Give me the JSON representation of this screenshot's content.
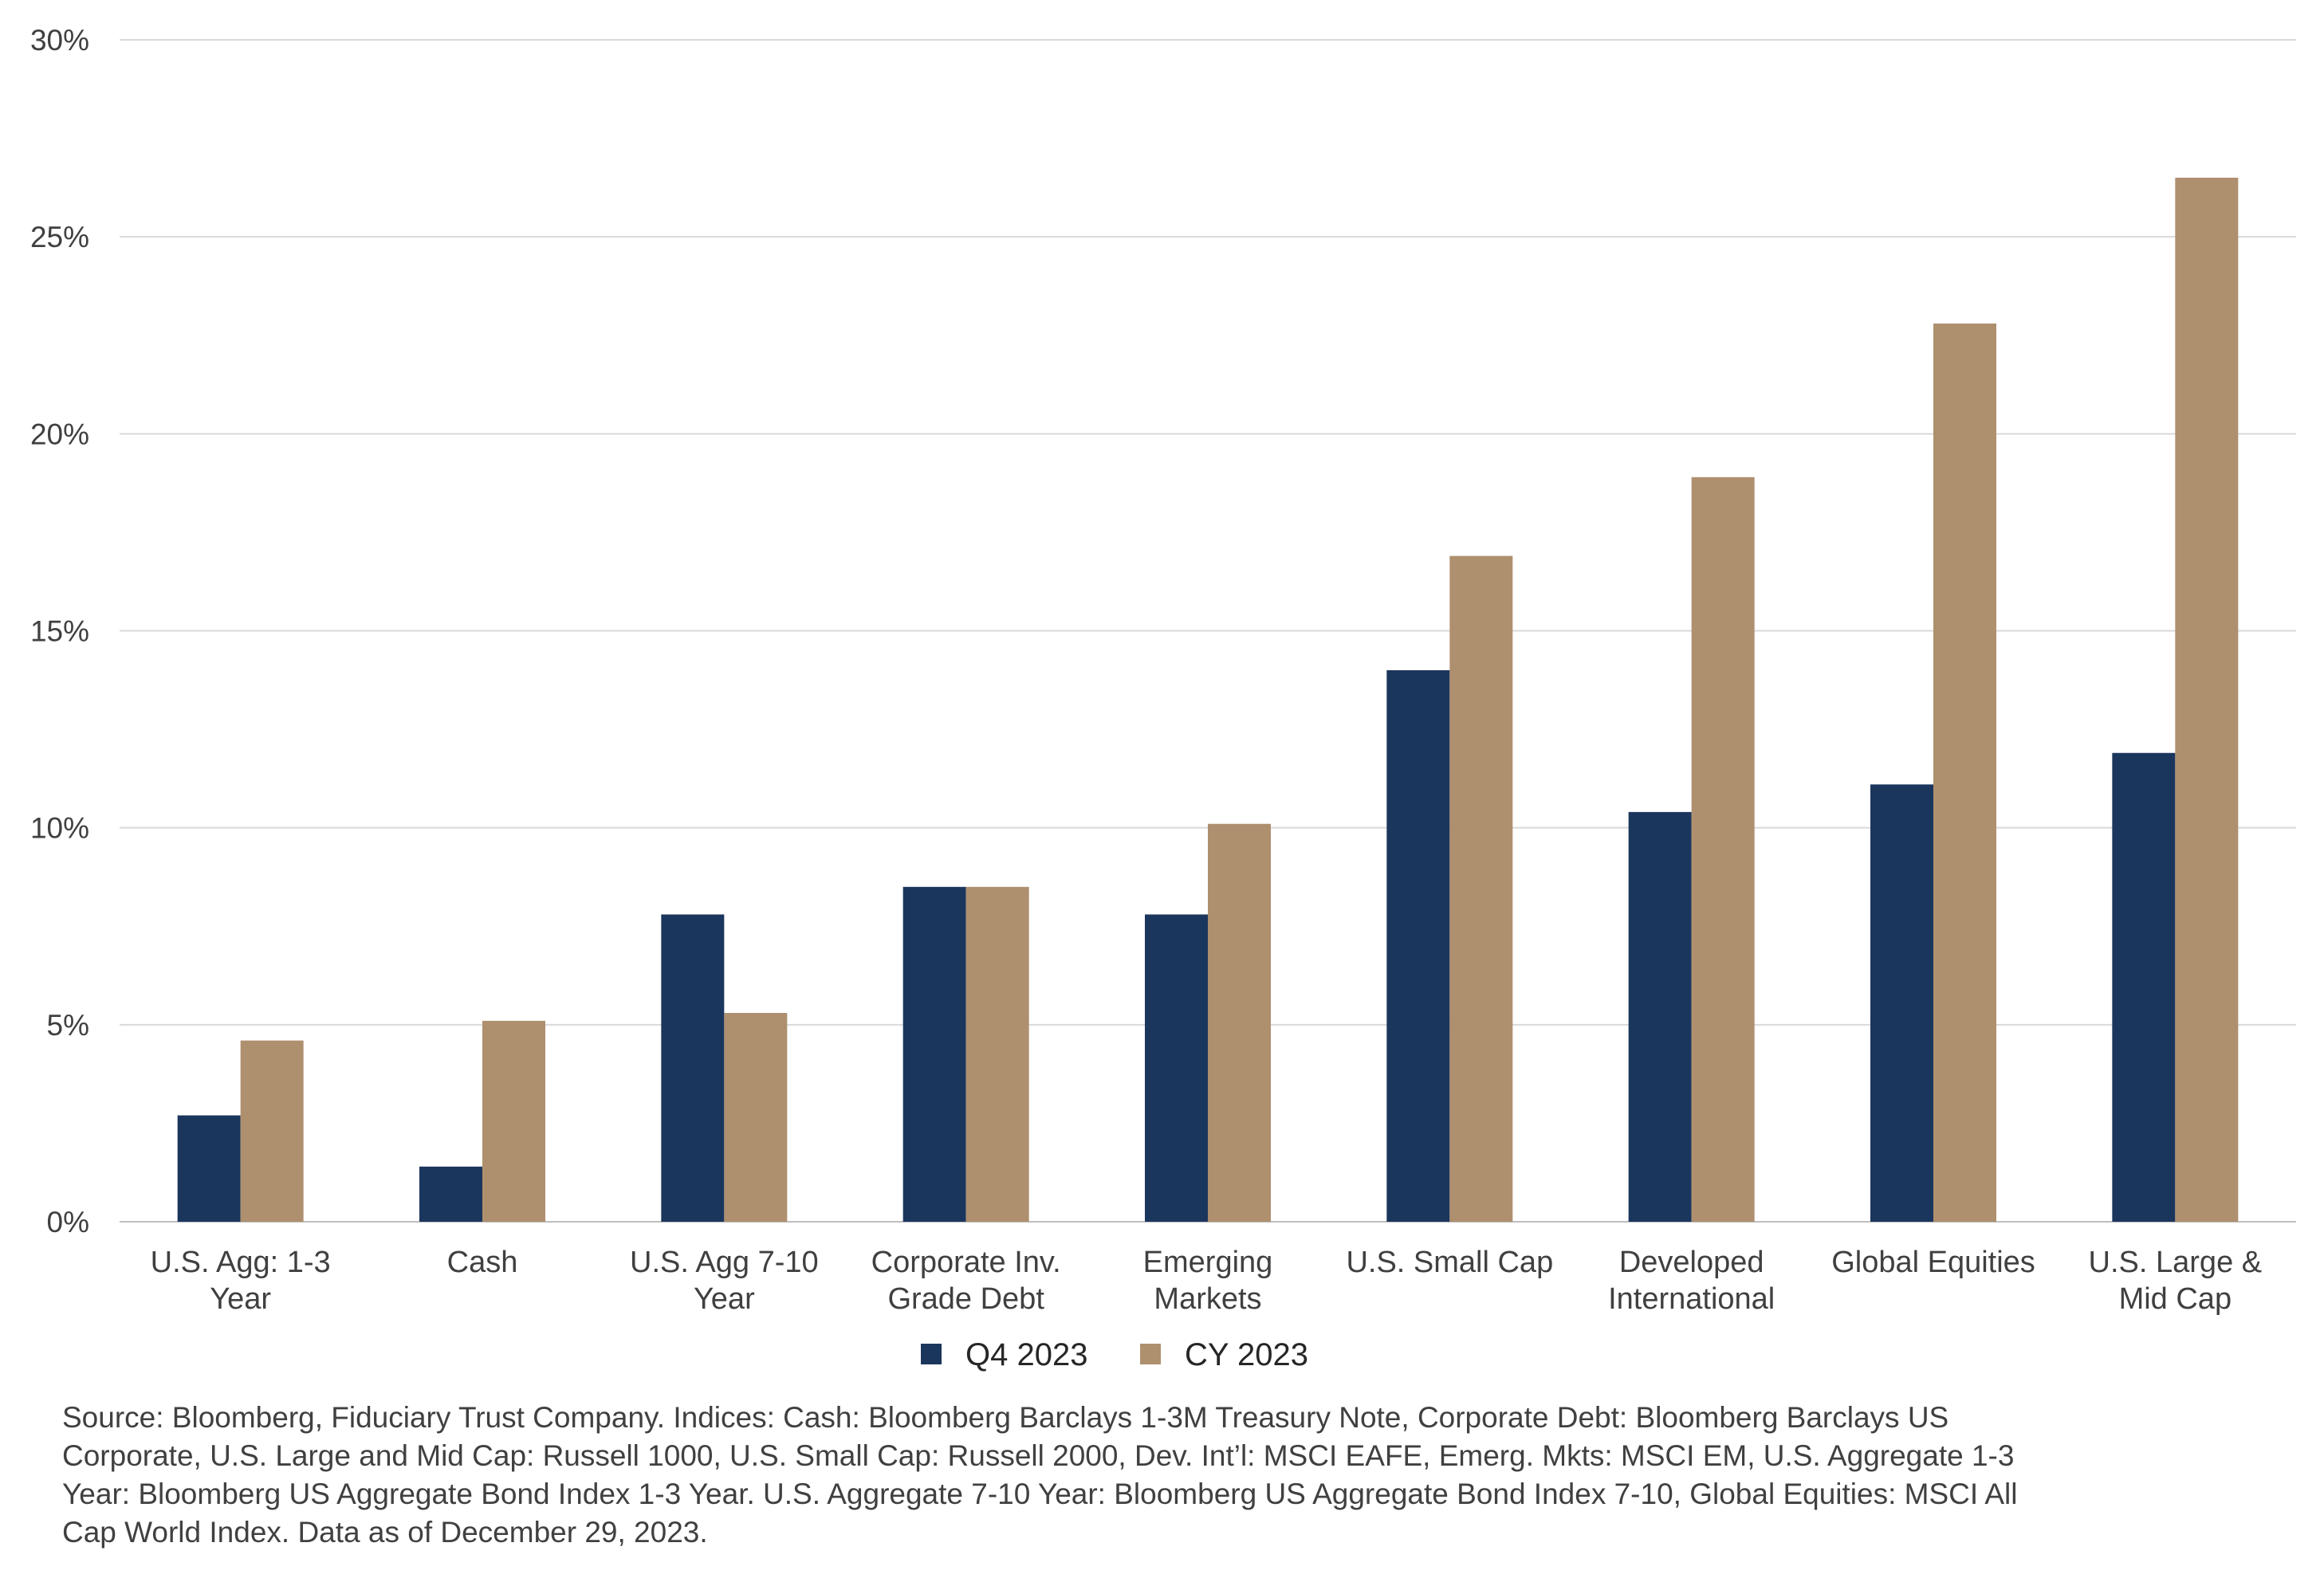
{
  "chart_data": {
    "type": "bar",
    "title": "",
    "xlabel": "",
    "ylabel": "",
    "ylim": [
      0,
      30
    ],
    "yticks": [
      "0%",
      "5%",
      "10%",
      "15%",
      "20%",
      "25%",
      "30%"
    ],
    "grid": true,
    "legend_position": "bottom",
    "categories": [
      [
        "U.S. Agg: 1-3",
        "Year"
      ],
      [
        "Cash"
      ],
      [
        "U.S. Agg 7-10",
        "Year"
      ],
      [
        "Corporate Inv.",
        "Grade Debt"
      ],
      [
        "Emerging",
        "Markets"
      ],
      [
        "U.S. Small Cap"
      ],
      [
        "Developed",
        "International"
      ],
      [
        "Global Equities"
      ],
      [
        "U.S. Large &",
        "Mid Cap"
      ]
    ],
    "series": [
      {
        "name": "Q4 2023",
        "color": "#1b365d",
        "values": [
          2.7,
          1.4,
          7.8,
          8.5,
          7.8,
          14.0,
          10.4,
          11.1,
          11.9
        ]
      },
      {
        "name": "CY 2023",
        "color": "#ae8f6e",
        "values": [
          4.6,
          5.1,
          5.3,
          8.5,
          10.1,
          16.9,
          18.9,
          22.8,
          26.5
        ]
      }
    ]
  },
  "footnote": [
    "Source: Bloomberg, Fiduciary Trust Company.  Indices: Cash: Bloomberg Barclays 1-3M Treasury Note, Corporate Debt: Bloomberg Barclays US",
    "Corporate, U.S. Large and Mid Cap: Russell 1000, U.S. Small Cap: Russell 2000, Dev. Int’l: MSCI EAFE, Emerg. Mkts: MSCI EM, U.S. Aggregate 1-3",
    "Year: Bloomberg US Aggregate Bond Index 1-3 Year. U.S. Aggregate 7-10 Year: Bloomberg US Aggregate Bond Index 7-10, Global Equities: MSCI All",
    "Cap World Index. Data as of December 29, 2023."
  ]
}
